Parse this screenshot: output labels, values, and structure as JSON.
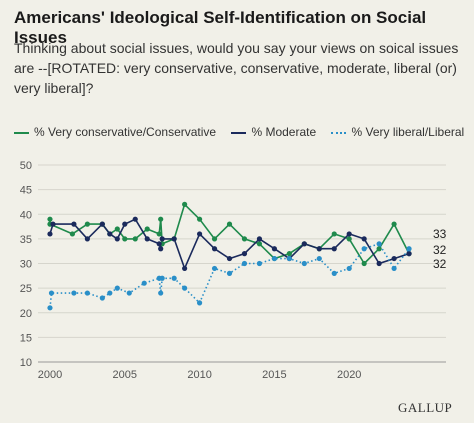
{
  "chart_data": {
    "type": "line",
    "title": "Americans' Ideological Self-Identification on Social Issues",
    "subtitle": "Thinking about social issues, would you say your views on soical issues are --[ROTATED: very conservative, conservative, moderate, liberal (or) very liberal]?",
    "xlim": [
      1999.2,
      2025.4
    ],
    "ylim": [
      10,
      50
    ],
    "y_ticks": [
      10,
      15,
      20,
      25,
      30,
      35,
      40,
      45,
      50
    ],
    "x_ticks": [
      2000,
      2005,
      2010,
      2015,
      2020
    ],
    "grid": true,
    "legend_position": "top",
    "series": [
      {
        "name": "% Very conservative/Conservative",
        "color": "#1f8a4c",
        "style": "solid",
        "end_label": "32",
        "points": [
          [
            2000,
            39
          ],
          [
            2000,
            38
          ],
          [
            2001.5,
            36
          ],
          [
            2002.5,
            38
          ],
          [
            2003.5,
            38
          ],
          [
            2004,
            36
          ],
          [
            2004.5,
            37
          ],
          [
            2005,
            35
          ],
          [
            2005.7,
            35
          ],
          [
            2006.5,
            37
          ],
          [
            2007.3,
            36
          ],
          [
            2007.4,
            39
          ],
          [
            2007.5,
            34
          ],
          [
            2008.3,
            35
          ],
          [
            2009,
            42
          ],
          [
            2010,
            39
          ],
          [
            2011,
            35
          ],
          [
            2012,
            38
          ],
          [
            2013,
            35
          ],
          [
            2014,
            34
          ],
          [
            2015,
            31
          ],
          [
            2016,
            32
          ],
          [
            2017,
            34
          ],
          [
            2018,
            33
          ],
          [
            2019,
            36
          ],
          [
            2020,
            35
          ],
          [
            2021,
            30
          ],
          [
            2022,
            33
          ],
          [
            2023,
            38
          ],
          [
            2024,
            32
          ]
        ]
      },
      {
        "name": "% Moderate",
        "color": "#1b2a5c",
        "style": "solid",
        "end_label": "32",
        "points": [
          [
            2000,
            36
          ],
          [
            2000.2,
            38
          ],
          [
            2001.6,
            38
          ],
          [
            2002.5,
            35
          ],
          [
            2003.5,
            38
          ],
          [
            2004,
            36
          ],
          [
            2004.5,
            35
          ],
          [
            2005,
            38
          ],
          [
            2005.7,
            39
          ],
          [
            2006.5,
            35
          ],
          [
            2007.3,
            34
          ],
          [
            2007.4,
            33
          ],
          [
            2007.5,
            35
          ],
          [
            2008.3,
            35
          ],
          [
            2009,
            29
          ],
          [
            2010,
            36
          ],
          [
            2011,
            33
          ],
          [
            2012,
            31
          ],
          [
            2013,
            32
          ],
          [
            2014,
            35
          ],
          [
            2015,
            33
          ],
          [
            2016,
            31
          ],
          [
            2017,
            34
          ],
          [
            2018,
            33
          ],
          [
            2019,
            33
          ],
          [
            2020,
            36
          ],
          [
            2021,
            35
          ],
          [
            2022,
            30
          ],
          [
            2023,
            31
          ],
          [
            2024,
            32
          ]
        ]
      },
      {
        "name": "% Very liberal/Liberal",
        "color": "#2a8fc8",
        "style": "dotted",
        "end_label": "33",
        "points": [
          [
            2000,
            21
          ],
          [
            2000.1,
            24
          ],
          [
            2001.6,
            24
          ],
          [
            2002.5,
            24
          ],
          [
            2003.5,
            23
          ],
          [
            2004,
            24
          ],
          [
            2004.5,
            25
          ],
          [
            2005.3,
            24
          ],
          [
            2006.3,
            26
          ],
          [
            2007.3,
            27
          ],
          [
            2007.4,
            24
          ],
          [
            2007.5,
            27
          ],
          [
            2008.3,
            27
          ],
          [
            2009,
            25
          ],
          [
            2010,
            22
          ],
          [
            2011,
            29
          ],
          [
            2012,
            28
          ],
          [
            2013,
            30
          ],
          [
            2014,
            30
          ],
          [
            2015,
            31
          ],
          [
            2016,
            31
          ],
          [
            2017,
            30
          ],
          [
            2018,
            31
          ],
          [
            2019,
            28
          ],
          [
            2020,
            29
          ],
          [
            2021,
            33
          ],
          [
            2022,
            34
          ],
          [
            2023,
            29
          ],
          [
            2024,
            33
          ]
        ]
      }
    ]
  },
  "brand": "GALLUP"
}
